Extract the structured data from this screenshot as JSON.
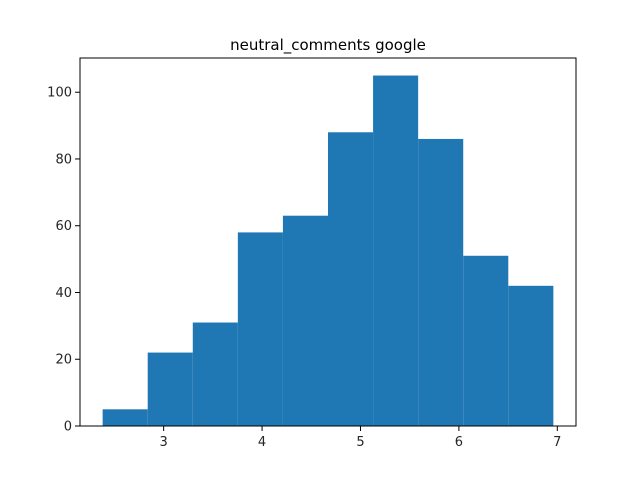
{
  "chart_data": {
    "type": "bar",
    "title": "neutral_comments google",
    "xlabel": "",
    "ylabel": "",
    "bin_edges": [
      2.38,
      2.838,
      3.296,
      3.754,
      4.212,
      4.67,
      5.128,
      5.586,
      6.044,
      6.502,
      6.96
    ],
    "values": [
      5,
      22,
      31,
      58,
      63,
      88,
      105,
      86,
      51,
      42
    ],
    "xlim": [
      2.15,
      7.19
    ],
    "ylim": [
      0,
      110.25
    ],
    "xticks": [
      3,
      4,
      5,
      6,
      7
    ],
    "yticks": [
      0,
      20,
      40,
      60,
      80,
      100
    ],
    "bar_color": "#1f77b4",
    "grid": false,
    "legend": "none"
  }
}
